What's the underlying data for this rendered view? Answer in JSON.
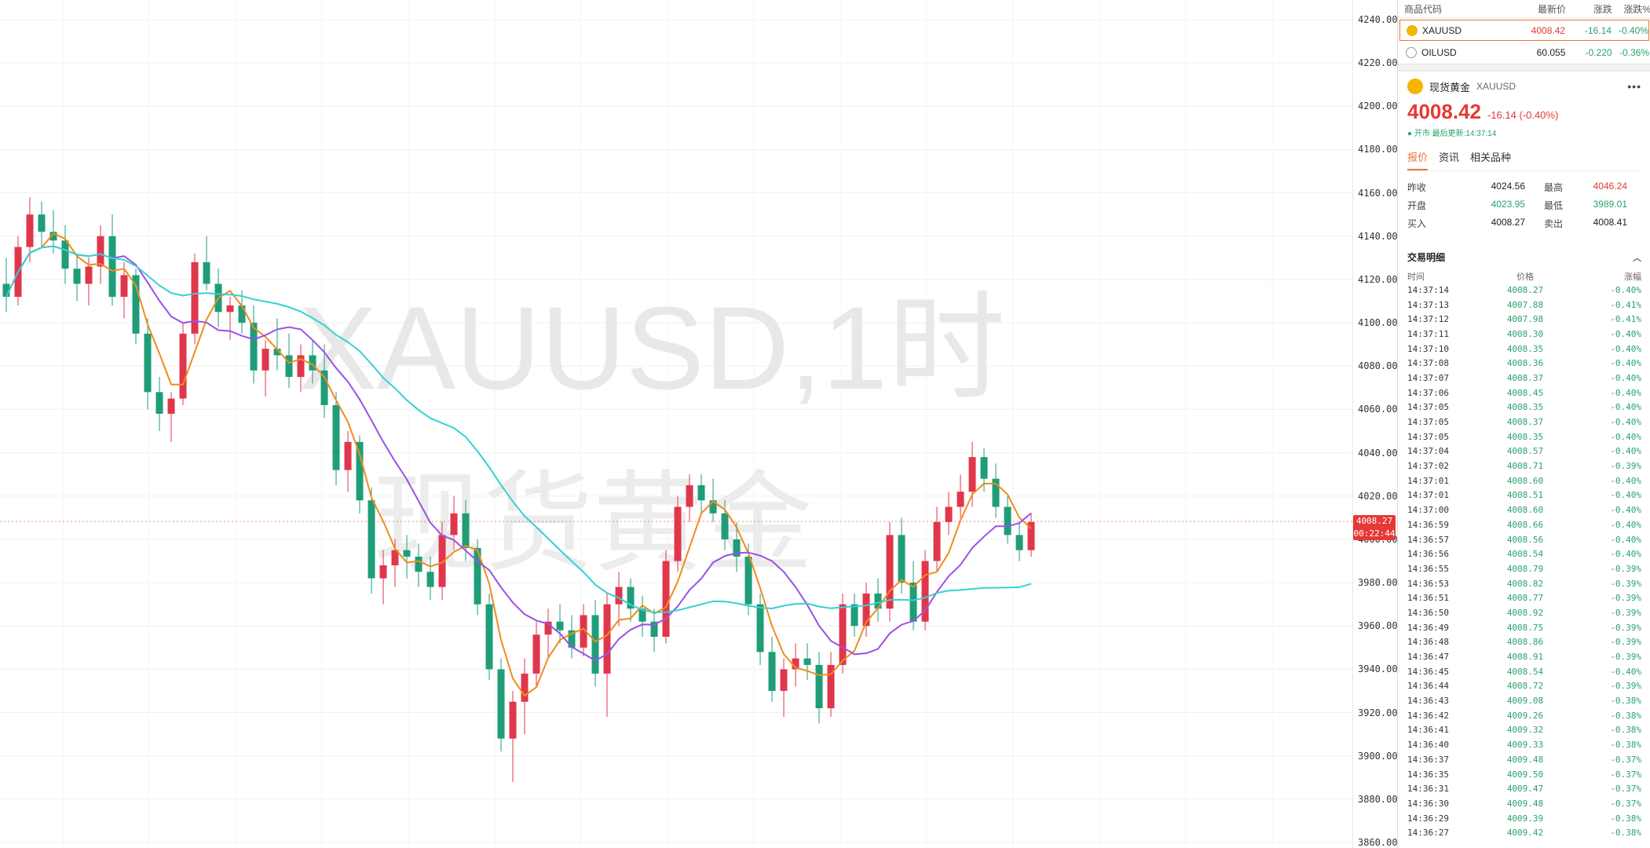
{
  "chart": {
    "watermark_symbol": "XAUUSD,1时",
    "watermark_name": "现货黄金",
    "y_ticks": [
      "4240.00",
      "4220.00",
      "4200.00",
      "4180.00",
      "4160.00",
      "4140.00",
      "4120.00",
      "4100.00",
      "4080.00",
      "4060.00",
      "4040.00",
      "4020.00",
      "4000.00",
      "3980.00",
      "3960.00",
      "3940.00",
      "3920.00",
      "3900.00",
      "3880.00",
      "3860.00"
    ],
    "current_price_label": "4008.27",
    "countdown_label": "00:22:44",
    "colors": {
      "up": "#e0364b",
      "down": "#1e9d78",
      "ma_fast": "#f08c1c",
      "ma_mid": "#9a52e6",
      "ma_slow": "#37d1d1"
    }
  },
  "chart_data": {
    "type": "candlestick",
    "ylim": [
      3850,
      4250
    ],
    "candles": [
      [
        4118,
        4130,
        4105,
        4112
      ],
      [
        4112,
        4140,
        4108,
        4135
      ],
      [
        4135,
        4158,
        4128,
        4150
      ],
      [
        4150,
        4156,
        4135,
        4142
      ],
      [
        4142,
        4152,
        4132,
        4138
      ],
      [
        4138,
        4145,
        4118,
        4125
      ],
      [
        4125,
        4132,
        4110,
        4118
      ],
      [
        4118,
        4130,
        4108,
        4126
      ],
      [
        4126,
        4145,
        4118,
        4140
      ],
      [
        4140,
        4150,
        4108,
        4112
      ],
      [
        4112,
        4128,
        4102,
        4122
      ],
      [
        4122,
        4125,
        4090,
        4095
      ],
      [
        4095,
        4102,
        4060,
        4068
      ],
      [
        4068,
        4075,
        4050,
        4058
      ],
      [
        4058,
        4068,
        4045,
        4065
      ],
      [
        4065,
        4100,
        4062,
        4095
      ],
      [
        4095,
        4132,
        4090,
        4128
      ],
      [
        4128,
        4140,
        4115,
        4118
      ],
      [
        4118,
        4125,
        4098,
        4105
      ],
      [
        4105,
        4112,
        4092,
        4108
      ],
      [
        4108,
        4115,
        4095,
        4100
      ],
      [
        4100,
        4108,
        4072,
        4078
      ],
      [
        4078,
        4092,
        4066,
        4088
      ],
      [
        4088,
        4102,
        4078,
        4085
      ],
      [
        4085,
        4095,
        4070,
        4075
      ],
      [
        4075,
        4090,
        4068,
        4085
      ],
      [
        4085,
        4092,
        4072,
        4078
      ],
      [
        4078,
        4090,
        4056,
        4062
      ],
      [
        4062,
        4068,
        4025,
        4032
      ],
      [
        4032,
        4050,
        4022,
        4045
      ],
      [
        4045,
        4048,
        4012,
        4018
      ],
      [
        4018,
        4024,
        3975,
        3982
      ],
      [
        3982,
        3995,
        3970,
        3988
      ],
      [
        3988,
        4000,
        3978,
        3995
      ],
      [
        3995,
        4002,
        3982,
        3992
      ],
      [
        3992,
        3998,
        3978,
        3985
      ],
      [
        3985,
        3992,
        3972,
        3978
      ],
      [
        3978,
        4008,
        3972,
        4002
      ],
      [
        4002,
        4020,
        3995,
        4012
      ],
      [
        4012,
        4018,
        3990,
        3996
      ],
      [
        3996,
        4000,
        3965,
        3970
      ],
      [
        3970,
        3975,
        3935,
        3940
      ],
      [
        3940,
        3945,
        3902,
        3908
      ],
      [
        3908,
        3930,
        3888,
        3925
      ],
      [
        3925,
        3945,
        3910,
        3938
      ],
      [
        3938,
        3962,
        3932,
        3956
      ],
      [
        3956,
        3968,
        3945,
        3962
      ],
      [
        3962,
        3970,
        3952,
        3958
      ],
      [
        3958,
        3965,
        3945,
        3950
      ],
      [
        3950,
        3970,
        3946,
        3965
      ],
      [
        3965,
        3972,
        3932,
        3938
      ],
      [
        3938,
        3975,
        3918,
        3970
      ],
      [
        3970,
        3985,
        3960,
        3978
      ],
      [
        3978,
        3982,
        3962,
        3968
      ],
      [
        3968,
        3974,
        3955,
        3962
      ],
      [
        3962,
        3968,
        3948,
        3955
      ],
      [
        3955,
        3995,
        3952,
        3990
      ],
      [
        3990,
        4020,
        3985,
        4015
      ],
      [
        4015,
        4030,
        4008,
        4025
      ],
      [
        4025,
        4030,
        4012,
        4018
      ],
      [
        4018,
        4028,
        4008,
        4012
      ],
      [
        4012,
        4018,
        3995,
        4000
      ],
      [
        4000,
        4008,
        3985,
        3992
      ],
      [
        3992,
        3998,
        3965,
        3970
      ],
      [
        3970,
        3975,
        3942,
        3948
      ],
      [
        3948,
        3955,
        3925,
        3930
      ],
      [
        3930,
        3945,
        3918,
        3940
      ],
      [
        3940,
        3952,
        3932,
        3945
      ],
      [
        3945,
        3952,
        3935,
        3942
      ],
      [
        3942,
        3948,
        3915,
        3922
      ],
      [
        3922,
        3948,
        3918,
        3942
      ],
      [
        3942,
        3975,
        3938,
        3970
      ],
      [
        3970,
        3975,
        3955,
        3960
      ],
      [
        3960,
        3980,
        3955,
        3975
      ],
      [
        3975,
        3982,
        3962,
        3968
      ],
      [
        3968,
        4008,
        3962,
        4002
      ],
      [
        4002,
        4010,
        3975,
        3980
      ],
      [
        3980,
        3990,
        3958,
        3962
      ],
      [
        3962,
        3995,
        3958,
        3990
      ],
      [
        3990,
        4015,
        3985,
        4008
      ],
      [
        4008,
        4022,
        4002,
        4015
      ],
      [
        4015,
        4030,
        4010,
        4022
      ],
      [
        4022,
        4045,
        4015,
        4038
      ],
      [
        4038,
        4042,
        4022,
        4028
      ],
      [
        4028,
        4035,
        4010,
        4015
      ],
      [
        4015,
        4020,
        3998,
        4002
      ],
      [
        4002,
        4008,
        3990,
        3995
      ],
      [
        3995,
        4012,
        3992,
        4008
      ]
    ]
  },
  "sidebar": {
    "watchlist_header": {
      "code": "商品代码",
      "latest": "最新价",
      "change": "涨跌",
      "pct": "涨跌%"
    },
    "watchlist": [
      {
        "code": "XAUUSD",
        "latest": "4008.42",
        "change": "-16.14",
        "pct": "-0.40%"
      },
      {
        "code": "OILUSD",
        "latest": "60.055",
        "change": "-0.220",
        "pct": "-0.36%"
      }
    ],
    "detail": {
      "name": "现货黄金",
      "code": "XAUUSD",
      "more": "•••",
      "price": "4008.42",
      "change": "-16.14 (-0.40%)",
      "status": "● 开市 最后更新:14:37:14",
      "tabs": [
        "报价",
        "资讯",
        "相关品种"
      ],
      "quote": [
        {
          "label": "昨收",
          "value": "4024.56",
          "label2": "最高",
          "value2": "4046.24"
        },
        {
          "label": "开盘",
          "value": "4023.95",
          "label2": "最低",
          "value2": "3989.01"
        },
        {
          "label": "买入",
          "value": "4008.27",
          "label2": "卖出",
          "value2": "4008.41"
        }
      ]
    },
    "trades_title": "交易明细",
    "trades_header": {
      "time": "时间",
      "price": "价格",
      "pct": "涨幅"
    },
    "trades": [
      [
        "14:37:14",
        "4008.27",
        "-0.40%"
      ],
      [
        "14:37:13",
        "4007.88",
        "-0.41%"
      ],
      [
        "14:37:12",
        "4007.98",
        "-0.41%"
      ],
      [
        "14:37:11",
        "4008.30",
        "-0.40%"
      ],
      [
        "14:37:10",
        "4008.35",
        "-0.40%"
      ],
      [
        "14:37:08",
        "4008.36",
        "-0.40%"
      ],
      [
        "14:37:07",
        "4008.37",
        "-0.40%"
      ],
      [
        "14:37:06",
        "4008.45",
        "-0.40%"
      ],
      [
        "14:37:05",
        "4008.35",
        "-0.40%"
      ],
      [
        "14:37:05",
        "4008.37",
        "-0.40%"
      ],
      [
        "14:37:05",
        "4008.35",
        "-0.40%"
      ],
      [
        "14:37:04",
        "4008.57",
        "-0.40%"
      ],
      [
        "14:37:02",
        "4008.71",
        "-0.39%"
      ],
      [
        "14:37:01",
        "4008.60",
        "-0.40%"
      ],
      [
        "14:37:01",
        "4008.51",
        "-0.40%"
      ],
      [
        "14:37:00",
        "4008.60",
        "-0.40%"
      ],
      [
        "14:36:59",
        "4008.66",
        "-0.40%"
      ],
      [
        "14:36:57",
        "4008.56",
        "-0.40%"
      ],
      [
        "14:36:56",
        "4008.54",
        "-0.40%"
      ],
      [
        "14:36:55",
        "4008.79",
        "-0.39%"
      ],
      [
        "14:36:53",
        "4008.82",
        "-0.39%"
      ],
      [
        "14:36:51",
        "4008.77",
        "-0.39%"
      ],
      [
        "14:36:50",
        "4008.92",
        "-0.39%"
      ],
      [
        "14:36:49",
        "4008.75",
        "-0.39%"
      ],
      [
        "14:36:48",
        "4008.86",
        "-0.39%"
      ],
      [
        "14:36:47",
        "4008.91",
        "-0.39%"
      ],
      [
        "14:36:45",
        "4008.54",
        "-0.40%"
      ],
      [
        "14:36:44",
        "4008.72",
        "-0.39%"
      ],
      [
        "14:36:43",
        "4009.08",
        "-0.38%"
      ],
      [
        "14:36:42",
        "4009.26",
        "-0.38%"
      ],
      [
        "14:36:41",
        "4009.32",
        "-0.38%"
      ],
      [
        "14:36:40",
        "4009.33",
        "-0.38%"
      ],
      [
        "14:36:37",
        "4009.48",
        "-0.37%"
      ],
      [
        "14:36:35",
        "4009.50",
        "-0.37%"
      ],
      [
        "14:36:31",
        "4009.47",
        "-0.37%"
      ],
      [
        "14:36:30",
        "4009.48",
        "-0.37%"
      ],
      [
        "14:36:29",
        "4009.39",
        "-0.38%"
      ],
      [
        "14:36:27",
        "4009.42",
        "-0.38%"
      ]
    ]
  }
}
